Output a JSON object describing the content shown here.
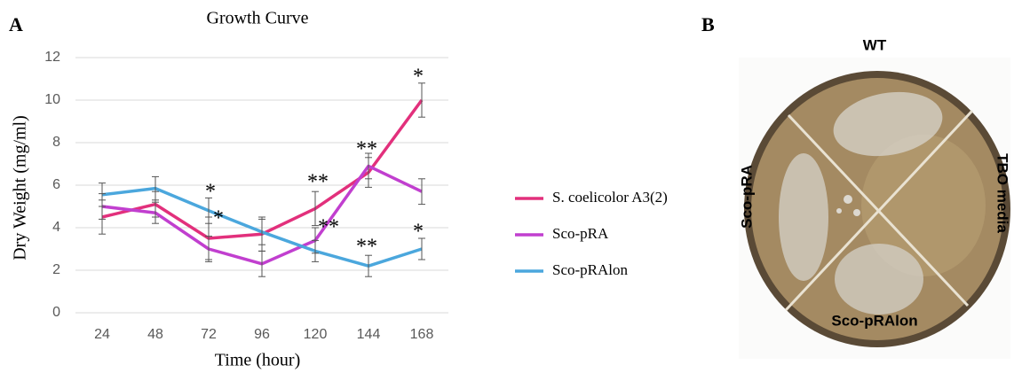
{
  "chart_data": {
    "type": "line",
    "panel_label": "A",
    "title": "Growth Curve",
    "x_label": "Time (hour)",
    "y_label": "Dry Weight (mg/ml)",
    "categories": [
      "24",
      "48",
      "72",
      "96",
      "120",
      "144",
      "168"
    ],
    "ylim": [
      0,
      12
    ],
    "yticks": [
      0,
      2,
      4,
      6,
      8,
      10,
      12
    ],
    "grid": true,
    "series": [
      {
        "name": "S. coelicolor A3(2)",
        "color": "#e2307c",
        "values": [
          4.5,
          5.1,
          3.5,
          3.7,
          4.9,
          6.6,
          10.0
        ],
        "errors": [
          0.8,
          0.6,
          1.0,
          0.8,
          0.8,
          0.7,
          0.8
        ]
      },
      {
        "name": "Sco-pRA",
        "color": "#c13fcf",
        "values": [
          5.0,
          4.7,
          3.0,
          2.3,
          3.4,
          6.9,
          5.7
        ],
        "errors": [
          0.6,
          0.5,
          0.6,
          0.6,
          0.6,
          0.6,
          0.6
        ]
      },
      {
        "name": "Sco-pRAlon",
        "color": "#4ba7dd",
        "values": [
          5.55,
          5.85,
          4.8,
          3.8,
          2.9,
          2.2,
          3.0
        ],
        "errors": [
          0.55,
          0.55,
          0.6,
          0.6,
          0.5,
          0.5,
          0.5
        ]
      }
    ],
    "annotations": [
      "*",
      "*",
      "**",
      "**",
      "**",
      "**",
      "*",
      "*"
    ]
  },
  "panel_b": {
    "panel_label": "B",
    "labels": {
      "top": "WT",
      "right": "TBO media",
      "bottom": "Sco-pRAlon",
      "left": "Sco-pRA"
    }
  }
}
